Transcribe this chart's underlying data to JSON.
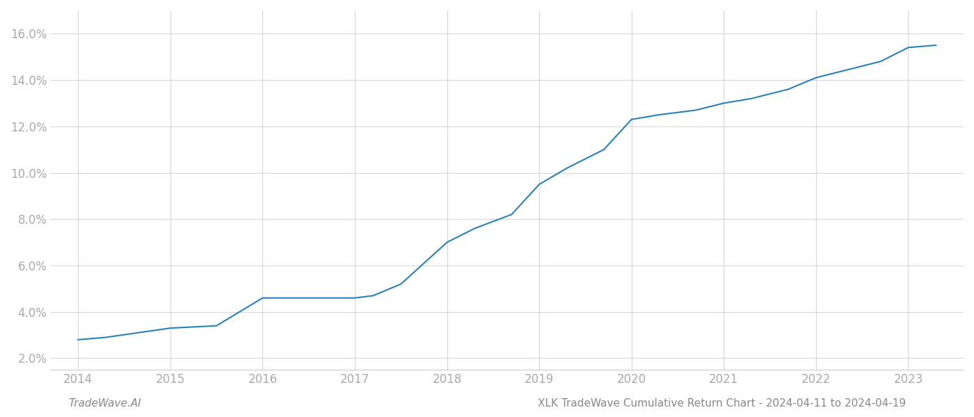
{
  "x_years": [
    2014,
    2014.3,
    2015,
    2015.5,
    2016,
    2016.3,
    2016.8,
    2017,
    2017.2,
    2017.5,
    2018,
    2018.3,
    2018.7,
    2019,
    2019.3,
    2019.7,
    2020,
    2020.3,
    2020.7,
    2021,
    2021.3,
    2021.7,
    2022,
    2022.3,
    2022.7,
    2023,
    2023.3
  ],
  "y_values": [
    0.028,
    0.029,
    0.033,
    0.034,
    0.046,
    0.046,
    0.046,
    0.046,
    0.047,
    0.052,
    0.07,
    0.076,
    0.082,
    0.095,
    0.102,
    0.11,
    0.123,
    0.125,
    0.127,
    0.13,
    0.132,
    0.136,
    0.141,
    0.144,
    0.148,
    0.154,
    0.155
  ],
  "line_color": "#2980b9",
  "line_width": 1.5,
  "background_color": "#ffffff",
  "grid_color": "#cccccc",
  "ylabel_ticks": [
    0.02,
    0.04,
    0.06,
    0.08,
    0.1,
    0.12,
    0.14,
    0.16
  ],
  "ylabel_labels": [
    "2.0%",
    "4.0%",
    "6.0%",
    "8.0%",
    "10.0%",
    "12.0%",
    "14.0%",
    "16.0%"
  ],
  "xlim": [
    2013.7,
    2023.6
  ],
  "ylim": [
    0.015,
    0.17
  ],
  "xtick_years": [
    2014,
    2015,
    2016,
    2017,
    2018,
    2019,
    2020,
    2021,
    2022,
    2023
  ],
  "footer_left": "TradeWave.AI",
  "footer_right": "XLK TradeWave Cumulative Return Chart - 2024-04-11 to 2024-04-19",
  "footer_color": "#888888",
  "footer_fontsize": 11,
  "tick_label_color": "#aaaaaa",
  "tick_fontsize": 12
}
